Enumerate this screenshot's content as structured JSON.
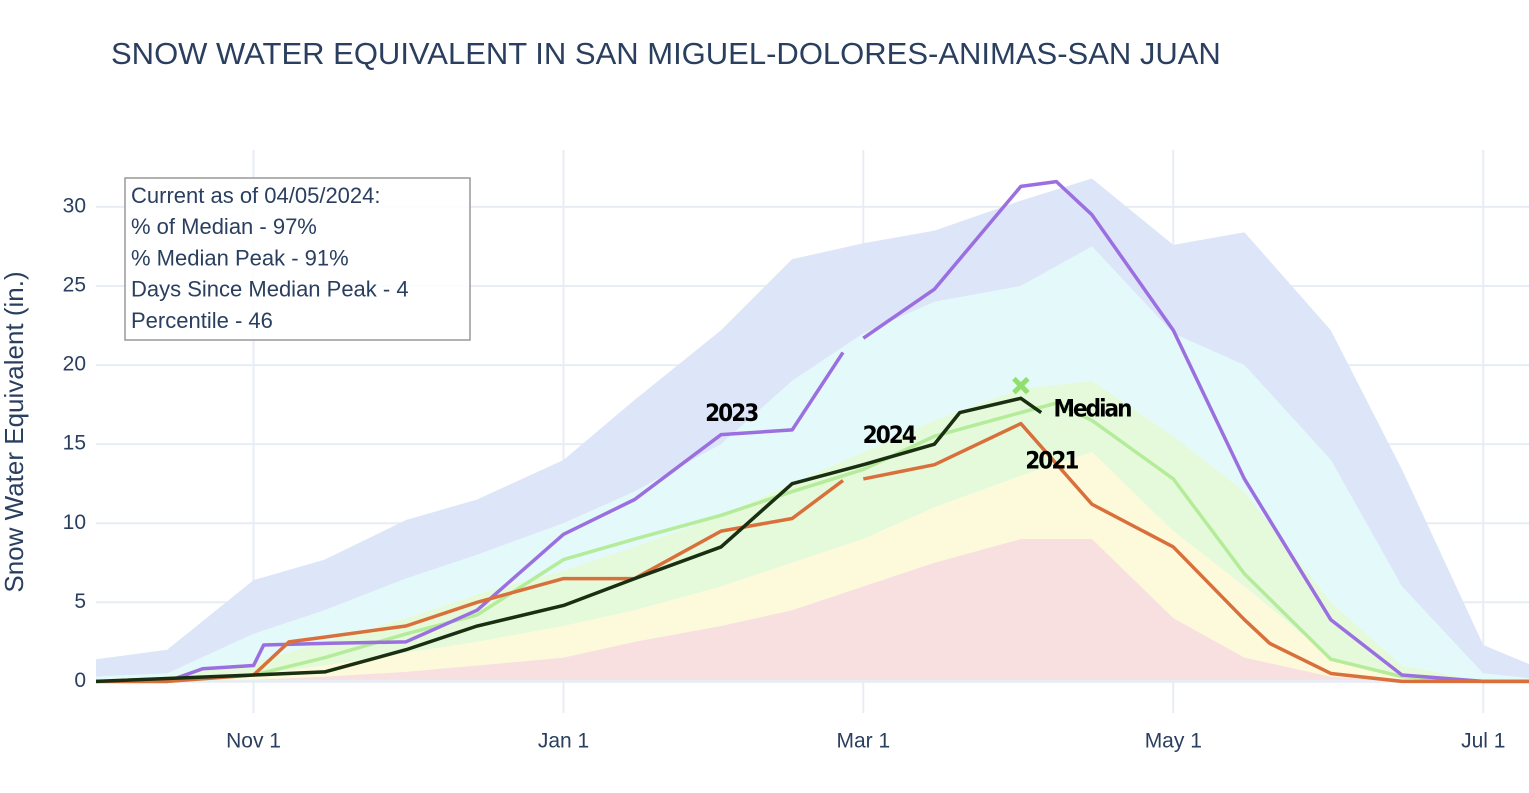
{
  "chart_data": {
    "type": "area-line",
    "title": "SNOW WATER EQUIVALENT IN SAN MIGUEL-DOLORES-ANIMAS-SAN JUAN",
    "y_label": "Snow Water Equivalent (in.)",
    "xlim": [
      "Oct 1",
      "Jul 10"
    ],
    "xticks": [
      "Nov 1",
      "Jan 1",
      "Mar 1",
      "May 1",
      "Jul 1"
    ],
    "ylim": [
      -2,
      33.6
    ],
    "yticks": [
      0,
      5,
      10,
      15,
      20,
      25,
      30
    ],
    "grid": true,
    "band_x": [
      "Oct 1",
      "Oct 15",
      "Nov 1",
      "Nov 15",
      "Dec 1",
      "Dec 15",
      "Jan 1",
      "Jan 15",
      "Feb 1",
      "Feb 15",
      "Mar 1",
      "Mar 15",
      "Apr 1",
      "Apr 15",
      "May 1",
      "May 15",
      "Jun 1",
      "Jun 15",
      "Jul 1",
      "Jul 10"
    ],
    "bands": [
      {
        "color": "#dce6f8",
        "values": [
          1.4,
          2,
          6.4,
          7.7,
          10.2,
          11.5,
          14,
          17.8,
          22.2,
          26.7,
          27.7,
          28.5,
          30.4,
          31.8,
          27.6,
          28.4,
          22.2,
          13.4,
          2.3,
          1.1
        ]
      },
      {
        "color": "#e4f9f9",
        "values": [
          0.3,
          0.5,
          3,
          4.5,
          6.5,
          8,
          10,
          12,
          15,
          19,
          22,
          24,
          25,
          27.5,
          22,
          20,
          14,
          6,
          0.5,
          0.2
        ]
      },
      {
        "color": "#e4fadb",
        "values": [
          0.1,
          0.3,
          1.2,
          2.5,
          4,
          5.5,
          7,
          8.5,
          10.5,
          12.5,
          14.5,
          16.5,
          18.5,
          19,
          15.5,
          12,
          5,
          1,
          0,
          0
        ]
      },
      {
        "color": "#fcfadb",
        "values": [
          0,
          0,
          0.4,
          1,
          1.8,
          2.5,
          3.5,
          4.5,
          6,
          7.5,
          9,
          11,
          13,
          14.5,
          9.5,
          6,
          1.5,
          0.2,
          0,
          0
        ]
      },
      {
        "color": "#f8dfe0",
        "values": [
          0,
          0,
          0.1,
          0.3,
          0.6,
          1,
          1.5,
          2.5,
          3.5,
          4.5,
          6,
          7.5,
          9,
          9,
          4,
          1.5,
          0.3,
          0,
          0,
          0
        ]
      }
    ],
    "series": [
      {
        "color": "#b4ec9a",
        "x": [
          "Oct 1",
          "Oct 15",
          "Nov 1",
          "Nov 15",
          "Dec 1",
          "Dec 15",
          "Jan 1",
          "Jan 15",
          "Feb 1",
          "Feb 15",
          "Mar 1",
          "Mar 15",
          "Apr 1",
          "Apr 8",
          "Apr 15",
          "May 1",
          "May 15",
          "Jun 1",
          "Jun 15",
          "Jul 1",
          "Jul 10"
        ],
        "values": [
          0,
          0,
          0.4,
          1.5,
          3,
          4.2,
          7.7,
          9,
          10.5,
          12,
          13.4,
          15.5,
          17,
          17.6,
          16.5,
          12.8,
          6.8,
          1.4,
          0.3,
          0,
          0
        ]
      },
      {
        "color": "#9b6fe0",
        "x": [
          "Oct 1",
          "Oct 15",
          "Oct 22",
          "Nov 1",
          "Nov 3",
          "Nov 15",
          "Dec 1",
          "Dec 15",
          "Jan 1",
          "Jan 15",
          "Feb 1",
          "Feb 15",
          "Feb 25",
          "Feb 28",
          "Mar 1",
          "Mar 15",
          "Apr 1",
          "Apr 8",
          "Apr 15",
          "May 1",
          "May 15",
          "Jun 1",
          "Jun 15",
          "Jul 1",
          "Jul 10"
        ],
        "values": [
          0,
          0,
          0.8,
          1,
          2.3,
          2.4,
          2.5,
          4.5,
          9.3,
          11.5,
          15.6,
          15.9,
          20.8,
          null,
          21.7,
          24.8,
          31.3,
          31.6,
          29.5,
          22.2,
          12.8,
          3.9,
          0.4,
          0,
          0
        ]
      },
      {
        "color": "#d9703c",
        "x": [
          "Oct 1",
          "Oct 15",
          "Nov 1",
          "Nov 8",
          "Nov 15",
          "Dec 1",
          "Dec 15",
          "Jan 1",
          "Jan 15",
          "Feb 1",
          "Feb 15",
          "Feb 25",
          "Feb 28",
          "Mar 1",
          "Mar 15",
          "Apr 1",
          "Apr 15",
          "May 1",
          "May 15",
          "May 20",
          "Jun 1",
          "Jun 15",
          "Jul 1",
          "Jul 10"
        ],
        "values": [
          0,
          0,
          0.4,
          2.5,
          2.8,
          3.5,
          5,
          6.5,
          6.5,
          9.5,
          10.3,
          12.7,
          null,
          12.8,
          13.7,
          16.3,
          11.2,
          8.5,
          3.9,
          2.4,
          0.5,
          0,
          0,
          0
        ]
      },
      {
        "color": "#1a2e12",
        "x": [
          "Oct 1",
          "Nov 1",
          "Nov 15",
          "Dec 1",
          "Dec 15",
          "Jan 1",
          "Jan 15",
          "Feb 1",
          "Feb 15",
          "Mar 1",
          "Mar 15",
          "Mar 20",
          "Apr 1",
          "Apr 5"
        ],
        "values": [
          0,
          0.4,
          0.6,
          2,
          3.5,
          4.8,
          6.5,
          8.5,
          12.5,
          13.7,
          15,
          17,
          17.9,
          17
        ]
      }
    ],
    "median_peak": {
      "x": "Apr 1",
      "value": 18.7,
      "color": "#90e070"
    },
    "annotations": [
      {
        "text": "2023",
        "x": "Feb 3",
        "y": 16.9
      },
      {
        "text": "2024",
        "x": "Mar 6",
        "y": 15.5
      },
      {
        "text": "Median",
        "x": "Apr 15",
        "y": 17.2
      },
      {
        "text": "2021",
        "x": "Apr 7",
        "y": 13.9
      }
    ],
    "info_box": [
      "Current as of 04/05/2024:",
      "% of Median - 97%",
      "% Median Peak - 91%",
      "Days Since Median Peak - 4",
      "Percentile - 46"
    ]
  }
}
